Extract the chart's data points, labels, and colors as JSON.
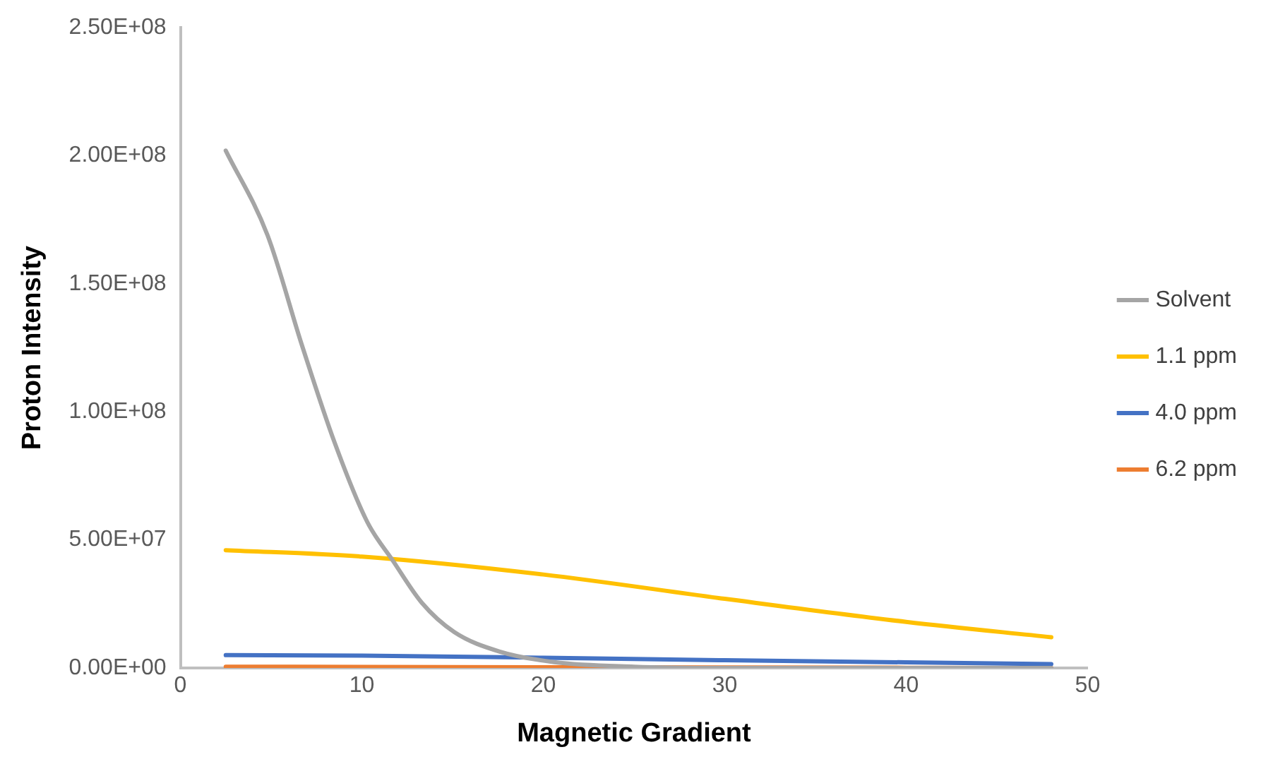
{
  "chart_data": {
    "type": "line",
    "xlabel": "Magnetic Gradient",
    "ylabel": "Proton Intensity",
    "xlim": [
      0,
      50
    ],
    "xticks": [
      0,
      10,
      20,
      30,
      40,
      50
    ],
    "ylim": [
      0,
      250000000
    ],
    "yticks": [
      {
        "value": 0,
        "label": "0.00E+00"
      },
      {
        "value": 50000000,
        "label": "5.00E+07"
      },
      {
        "value": 100000000,
        "label": "1.00E+08"
      },
      {
        "value": 150000000,
        "label": "1.50E+08"
      },
      {
        "value": 200000000,
        "label": "2.00E+08"
      },
      {
        "value": 250000000,
        "label": "2.50E+08"
      }
    ],
    "grid": false,
    "legend": "right",
    "marker": "none",
    "line_style": "solid",
    "series": [
      {
        "name": "Solvent",
        "color": "#a5a5a5",
        "x": [
          2.5,
          4.8,
          6.7,
          8.5,
          10.3,
          11.7,
          13.3,
          15.1,
          17.6,
          20.6,
          25,
          30,
          35,
          40,
          48
        ],
        "values": [
          202000000,
          169000000,
          126000000,
          88000000,
          57000000,
          42000000,
          25500000,
          14000000,
          6400000,
          2300000,
          500000,
          0,
          0,
          0,
          0
        ]
      },
      {
        "name": "1.1 ppm",
        "color": "#ffc000",
        "x": [
          2.5,
          10,
          20,
          30,
          40,
          48
        ],
        "values": [
          46000000,
          43500000,
          36500000,
          27000000,
          18000000,
          12000000
        ]
      },
      {
        "name": "4.0 ppm",
        "color": "#4472c4",
        "x": [
          2.5,
          10,
          20,
          30,
          40,
          48
        ],
        "values": [
          5000000,
          4800000,
          4000000,
          3000000,
          2200000,
          1500000
        ]
      },
      {
        "name": "6.2 ppm",
        "color": "#ed7d31",
        "x": [
          2.5,
          10,
          20,
          30,
          40,
          48
        ],
        "values": [
          500000,
          400000,
          300000,
          200000,
          100000,
          0
        ]
      }
    ]
  }
}
